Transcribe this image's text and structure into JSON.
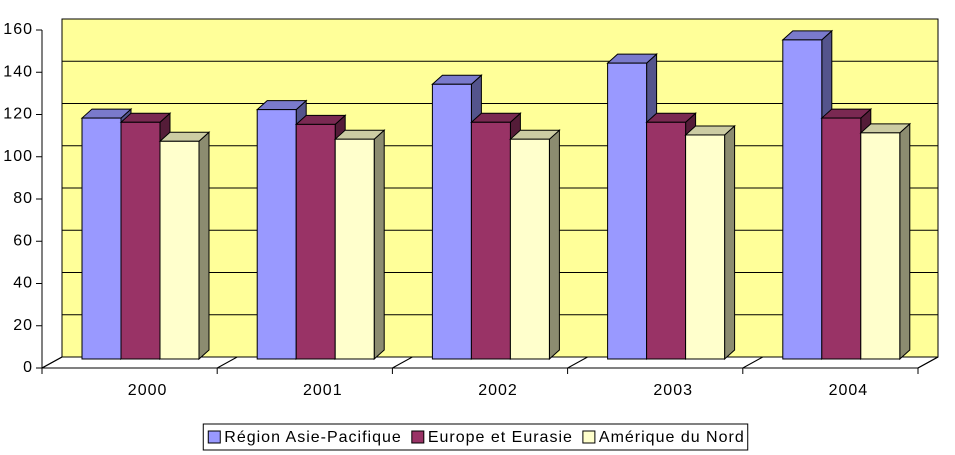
{
  "chart_data": {
    "type": "bar3d",
    "categories": [
      "2000",
      "2001",
      "2002",
      "2003",
      "2004"
    ],
    "series": [
      {
        "name": "Région Asie-Pacifique",
        "color": "#9999ff",
        "values": [
          115,
          119,
          131,
          141,
          152
        ]
      },
      {
        "name": "Europe et Eurasie",
        "color": "#993366",
        "values": [
          113,
          112,
          113,
          113,
          115
        ]
      },
      {
        "name": "Amérique du Nord",
        "color": "#ffffcc",
        "values": [
          104,
          105,
          105,
          107,
          108
        ]
      }
    ],
    "ylim": [
      0,
      160
    ],
    "yticks": [
      0,
      20,
      40,
      60,
      80,
      100,
      120,
      140,
      160
    ],
    "grid": true,
    "wall_color": "#ffff99",
    "legend": "bottom"
  }
}
